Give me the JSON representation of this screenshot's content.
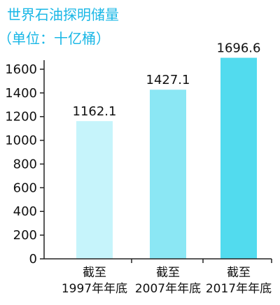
{
  "chart_data": {
    "type": "bar",
    "title": "世界石油探明储量",
    "subtitle": "（单位：十亿桶）",
    "categories": [
      [
        "截至",
        "1997年年底"
      ],
      [
        "截至",
        "2007年年底"
      ],
      [
        "截至",
        "2017年年底"
      ]
    ],
    "values": [
      1162.1,
      1427.1,
      1696.6
    ],
    "value_labels": [
      "1162.1",
      "1427.1",
      "1696.6"
    ],
    "ylim": [
      0,
      1700
    ],
    "y_ticks": [
      0,
      200,
      400,
      600,
      800,
      1000,
      1200,
      1400,
      1600
    ],
    "grid": false,
    "legend": "none",
    "colors": {
      "title": "#19b7e6",
      "bars": [
        "#c6f4fb",
        "#8be7f4",
        "#52dbee"
      ],
      "axis": "#222222",
      "text": "#111111"
    }
  }
}
